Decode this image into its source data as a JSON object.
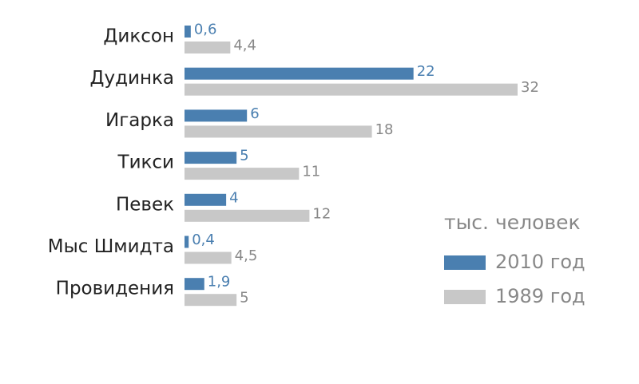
{
  "chart_data": {
    "type": "bar",
    "orientation": "horizontal",
    "legend_title": "тыс. человек",
    "categories": [
      "Диксон",
      "Дудинка",
      "Игарка",
      "Тикси",
      "Певек",
      "Мыс Шмидта",
      "Провидения"
    ],
    "series": [
      {
        "name": "2010 год",
        "color": "#4a7fb0",
        "values": [
          0.6,
          22,
          6,
          5,
          4,
          0.4,
          1.9
        ],
        "value_labels": [
          "0,6",
          "22",
          "6",
          "5",
          "4",
          "0,4",
          "1,9"
        ]
      },
      {
        "name": "1989 год",
        "color": "#c8c8c8",
        "values": [
          4.4,
          32,
          18,
          11,
          12,
          4.5,
          5
        ],
        "value_labels": [
          "4,4",
          "32",
          "18",
          "11",
          "12",
          "4,5",
          "5"
        ]
      }
    ],
    "legend": "right"
  }
}
